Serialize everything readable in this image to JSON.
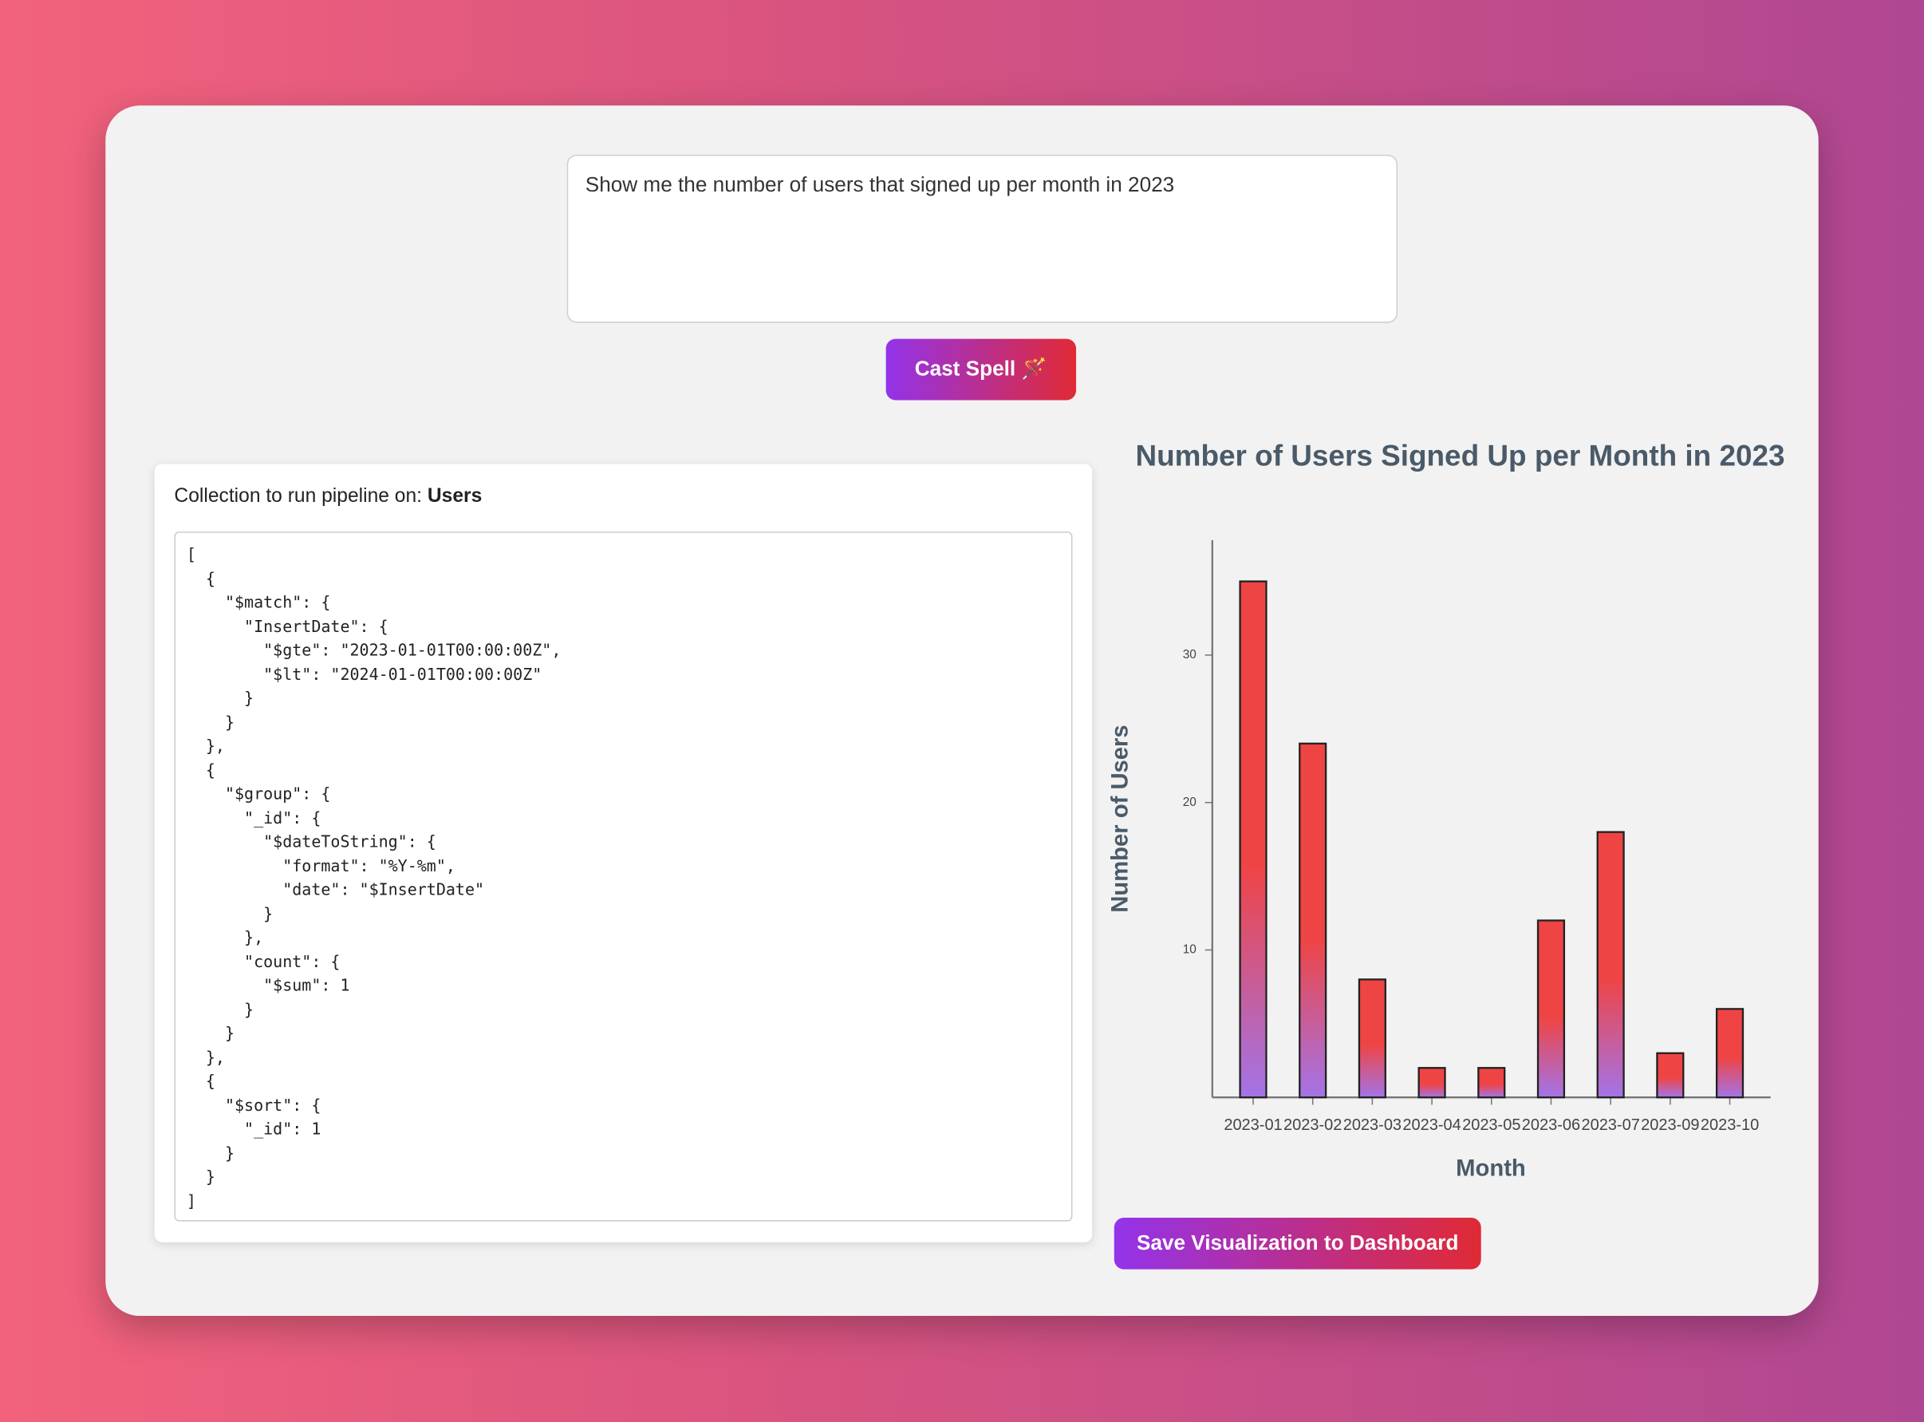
{
  "prompt": "Show me the number of users that signed up per month in 2023",
  "cast_button": "Cast Spell 🪄",
  "collection_label": "Collection to run pipeline on:",
  "collection_name": "Users",
  "pipeline_lines": [
    "[",
    "  {",
    "    \"$match\": {",
    "      \"InsertDate\": {",
    "        \"$gte\": \"2023-01-01T00:00:00Z\",",
    "        \"$lt\": \"2024-01-01T00:00:00Z\"",
    "      }",
    "    }",
    "  },",
    "  {",
    "    \"$group\": {",
    "      \"_id\": {",
    "        \"$dateToString\": {",
    "          \"format\": \"%Y-%m\",",
    "          \"date\": \"$InsertDate\"",
    "        }",
    "      },",
    "      \"count\": {",
    "        \"$sum\": 1",
    "      }",
    "    }",
    "  },",
    "  {",
    "    \"$sort\": {",
    "      \"_id\": 1",
    "    }",
    "  }",
    "]"
  ],
  "save_button": "Save Visualization to Dashboard",
  "chart_data": {
    "type": "bar",
    "title": "Number of Users Signed Up per Month in 2023",
    "x_label": "Month",
    "y_label": "Number of Users",
    "categories": [
      "2023-01",
      "2023-02",
      "2023-03",
      "2023-04",
      "2023-05",
      "2023-06",
      "2023-07",
      "2023-09",
      "2023-10"
    ],
    "values": [
      35,
      24,
      8,
      2,
      2,
      12,
      18,
      3,
      6
    ],
    "colors": [
      "#ef4444",
      "#a374e8"
    ],
    "ylim": [
      0,
      37.8
    ],
    "yticks": [
      10,
      20,
      30
    ],
    "grid": false
  }
}
